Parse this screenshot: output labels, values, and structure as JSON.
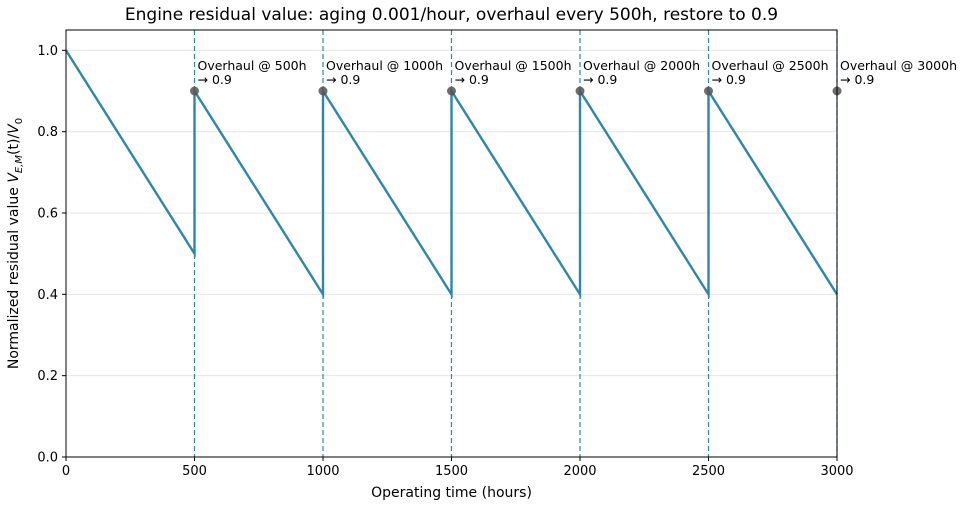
{
  "chart_data": {
    "type": "line",
    "title": "Engine residual value: aging 0.001/hour, overhaul every 500h, restore to 0.9",
    "xlabel": "Operating time (hours)",
    "ylabel_prefix": "Normalized residual value ",
    "ylabel_math": "V",
    "ylabel_sub": "E,M",
    "ylabel_arg": "(t)/",
    "ylabel_denom": "V",
    "ylabel_denom_sub": "0",
    "xlim": [
      0,
      3000
    ],
    "ylim": [
      0,
      1.05
    ],
    "grid": "y",
    "x_ticks": [
      0,
      500,
      1000,
      1500,
      2000,
      2500,
      3000
    ],
    "x_tick_labels": [
      "0",
      "500",
      "1000",
      "1500",
      "2000",
      "2500",
      "3000"
    ],
    "y_ticks": [
      0.0,
      0.2,
      0.4,
      0.6,
      0.8,
      1.0
    ],
    "y_tick_labels": [
      "0.0",
      "0.2",
      "0.4",
      "0.6",
      "0.8",
      "1.0"
    ],
    "series": [
      {
        "color": "#2e86ab",
        "x": [
          0,
          500,
          500,
          1000,
          1000,
          1500,
          1500,
          2000,
          2000,
          2500,
          2500,
          3000
        ],
        "y": [
          1.0,
          0.5,
          0.9,
          0.4,
          0.9,
          0.4,
          0.9,
          0.4,
          0.9,
          0.4,
          0.9,
          0.4
        ]
      }
    ],
    "overhauls": [
      {
        "x": 500,
        "y": 0.9,
        "line1": "Overhaul @ 500h",
        "line2": "→ 0.9"
      },
      {
        "x": 1000,
        "y": 0.9,
        "line1": "Overhaul @ 1000h",
        "line2": "→ 0.9"
      },
      {
        "x": 1500,
        "y": 0.9,
        "line1": "Overhaul @ 1500h",
        "line2": "→ 0.9"
      },
      {
        "x": 2000,
        "y": 0.9,
        "line1": "Overhaul @ 2000h",
        "line2": "→ 0.9"
      },
      {
        "x": 2500,
        "y": 0.9,
        "line1": "Overhaul @ 2500h",
        "line2": "→ 0.9"
      },
      {
        "x": 3000,
        "y": 0.9,
        "line1": "Overhaul @ 3000h",
        "line2": "→ 0.9"
      }
    ],
    "colors": {
      "line": "#2e86ab",
      "marker": "#555555",
      "vline": "#2e86ab",
      "grid": "#e6e6e6"
    }
  }
}
